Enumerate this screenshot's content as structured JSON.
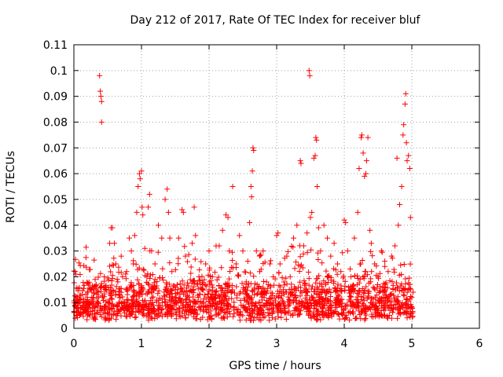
{
  "chart_data": {
    "type": "scatter",
    "title": "Day 212 of 2017, Rate Of TEC Index for receiver bluf",
    "xlabel": "GPS time / hours",
    "ylabel": "ROTI / TECUs",
    "xlim": [
      0,
      6
    ],
    "ylim": [
      0,
      0.11
    ],
    "xticks": [
      "0",
      "1",
      "2",
      "3",
      "4",
      "5",
      "6"
    ],
    "yticks": [
      "0",
      "0.01",
      "0.02",
      "0.03",
      "0.04",
      "0.05",
      "0.06",
      "0.07",
      "0.08",
      "0.09",
      "0.1",
      "0.11"
    ],
    "grid": true,
    "marker": "+",
    "color": "#ff0000",
    "series": [
      {
        "name": "ROTI",
        "points": [
          [
            0.02,
            0.022
          ],
          [
            0.03,
            0.021
          ],
          [
            0.05,
            0.012
          ],
          [
            0.06,
            0.009
          ],
          [
            0.08,
            0.011
          ],
          [
            0.1,
            0.008
          ],
          [
            0.12,
            0.013
          ],
          [
            0.15,
            0.01
          ],
          [
            0.18,
            0.007
          ],
          [
            0.2,
            0.012
          ],
          [
            0.22,
            0.009
          ],
          [
            0.25,
            0.015
          ],
          [
            0.28,
            0.011
          ],
          [
            0.3,
            0.008
          ],
          [
            0.33,
            0.017
          ],
          [
            0.35,
            0.01
          ],
          [
            0.38,
            0.098
          ],
          [
            0.39,
            0.092
          ],
          [
            0.4,
            0.09
          ],
          [
            0.41,
            0.088
          ],
          [
            0.41,
            0.08
          ],
          [
            0.42,
            0.012
          ],
          [
            0.45,
            0.02
          ],
          [
            0.48,
            0.015
          ],
          [
            0.5,
            0.01
          ],
          [
            0.53,
            0.033
          ],
          [
            0.55,
            0.039
          ],
          [
            0.57,
            0.039
          ],
          [
            0.6,
            0.033
          ],
          [
            0.62,
            0.025
          ],
          [
            0.65,
            0.018
          ],
          [
            0.68,
            0.012
          ],
          [
            0.7,
            0.028
          ],
          [
            0.72,
            0.02
          ],
          [
            0.75,
            0.01
          ],
          [
            0.78,
            0.022
          ],
          [
            0.8,
            0.015
          ],
          [
            0.82,
            0.035
          ],
          [
            0.85,
            0.03
          ],
          [
            0.88,
            0.025
          ],
          [
            0.9,
            0.036
          ],
          [
            0.93,
            0.045
          ],
          [
            0.95,
            0.055
          ],
          [
            0.97,
            0.06
          ],
          [
            0.98,
            0.058
          ],
          [
            1.0,
            0.061
          ],
          [
            1.01,
            0.047
          ],
          [
            1.02,
            0.044
          ],
          [
            1.05,
            0.031
          ],
          [
            1.08,
            0.02
          ],
          [
            1.1,
            0.047
          ],
          [
            1.12,
            0.052
          ],
          [
            1.15,
            0.03
          ],
          [
            1.18,
            0.015
          ],
          [
            1.2,
            0.025
          ],
          [
            1.25,
            0.04
          ],
          [
            1.3,
            0.035
          ],
          [
            1.35,
            0.05
          ],
          [
            1.38,
            0.054
          ],
          [
            1.4,
            0.045
          ],
          [
            1.42,
            0.035
          ],
          [
            1.45,
            0.022
          ],
          [
            1.5,
            0.015
          ],
          [
            1.55,
            0.035
          ],
          [
            1.6,
            0.046
          ],
          [
            1.62,
            0.045
          ],
          [
            1.65,
            0.028
          ],
          [
            1.7,
            0.012
          ],
          [
            1.75,
            0.033
          ],
          [
            1.78,
            0.047
          ],
          [
            1.8,
            0.036
          ],
          [
            1.85,
            0.02
          ],
          [
            1.9,
            0.015
          ],
          [
            1.95,
            0.025
          ],
          [
            2.0,
            0.03
          ],
          [
            2.05,
            0.02
          ],
          [
            2.1,
            0.012
          ],
          [
            2.15,
            0.032
          ],
          [
            2.2,
            0.038
          ],
          [
            2.25,
            0.044
          ],
          [
            2.28,
            0.043
          ],
          [
            2.3,
            0.03
          ],
          [
            2.35,
            0.055
          ],
          [
            2.4,
            0.025
          ],
          [
            2.45,
            0.036
          ],
          [
            2.5,
            0.03
          ],
          [
            2.55,
            0.018
          ],
          [
            2.6,
            0.041
          ],
          [
            2.62,
            0.055
          ],
          [
            2.63,
            0.051
          ],
          [
            2.64,
            0.061
          ],
          [
            2.65,
            0.07
          ],
          [
            2.66,
            0.069
          ],
          [
            2.7,
            0.03
          ],
          [
            2.75,
            0.022
          ],
          [
            2.8,
            0.03
          ],
          [
            2.85,
            0.018
          ],
          [
            2.9,
            0.025
          ],
          [
            2.95,
            0.02
          ],
          [
            3.0,
            0.036
          ],
          [
            3.02,
            0.037
          ],
          [
            3.05,
            0.025
          ],
          [
            3.1,
            0.015
          ],
          [
            3.15,
            0.028
          ],
          [
            3.2,
            0.02
          ],
          [
            3.25,
            0.035
          ],
          [
            3.3,
            0.04
          ],
          [
            3.35,
            0.065
          ],
          [
            3.36,
            0.064
          ],
          [
            3.4,
            0.032
          ],
          [
            3.45,
            0.037
          ],
          [
            3.48,
            0.1
          ],
          [
            3.49,
            0.098
          ],
          [
            3.5,
            0.043
          ],
          [
            3.52,
            0.045
          ],
          [
            3.55,
            0.066
          ],
          [
            3.57,
            0.067
          ],
          [
            3.58,
            0.074
          ],
          [
            3.59,
            0.073
          ],
          [
            3.6,
            0.055
          ],
          [
            3.62,
            0.039
          ],
          [
            3.65,
            0.03
          ],
          [
            3.7,
            0.04
          ],
          [
            3.75,
            0.035
          ],
          [
            3.8,
            0.028
          ],
          [
            3.85,
            0.033
          ],
          [
            3.9,
            0.025
          ],
          [
            3.95,
            0.022
          ],
          [
            4.0,
            0.042
          ],
          [
            4.02,
            0.041
          ],
          [
            4.05,
            0.03
          ],
          [
            4.1,
            0.02
          ],
          [
            4.15,
            0.035
          ],
          [
            4.2,
            0.045
          ],
          [
            4.22,
            0.062
          ],
          [
            4.25,
            0.074
          ],
          [
            4.26,
            0.075
          ],
          [
            4.28,
            0.068
          ],
          [
            4.3,
            0.059
          ],
          [
            4.32,
            0.06
          ],
          [
            4.33,
            0.065
          ],
          [
            4.35,
            0.074
          ],
          [
            4.38,
            0.038
          ],
          [
            4.4,
            0.033
          ],
          [
            4.45,
            0.025
          ],
          [
            4.5,
            0.02
          ],
          [
            4.55,
            0.03
          ],
          [
            4.6,
            0.026
          ],
          [
            4.65,
            0.022
          ],
          [
            4.7,
            0.028
          ],
          [
            4.75,
            0.032
          ],
          [
            4.78,
            0.066
          ],
          [
            4.8,
            0.04
          ],
          [
            4.82,
            0.048
          ],
          [
            4.85,
            0.055
          ],
          [
            4.87,
            0.075
          ],
          [
            4.88,
            0.079
          ],
          [
            4.9,
            0.087
          ],
          [
            4.91,
            0.091
          ],
          [
            4.92,
            0.072
          ],
          [
            4.93,
            0.065
          ],
          [
            4.95,
            0.067
          ],
          [
            4.97,
            0.062
          ],
          [
            4.98,
            0.043
          ],
          [
            5.0,
            0.012
          ],
          [
            5.01,
            0.006
          ]
        ]
      }
    ],
    "baseline_band": {
      "x_range": [
        0,
        5.02
      ],
      "y_range": [
        0.003,
        0.018
      ],
      "density": "dense"
    }
  }
}
